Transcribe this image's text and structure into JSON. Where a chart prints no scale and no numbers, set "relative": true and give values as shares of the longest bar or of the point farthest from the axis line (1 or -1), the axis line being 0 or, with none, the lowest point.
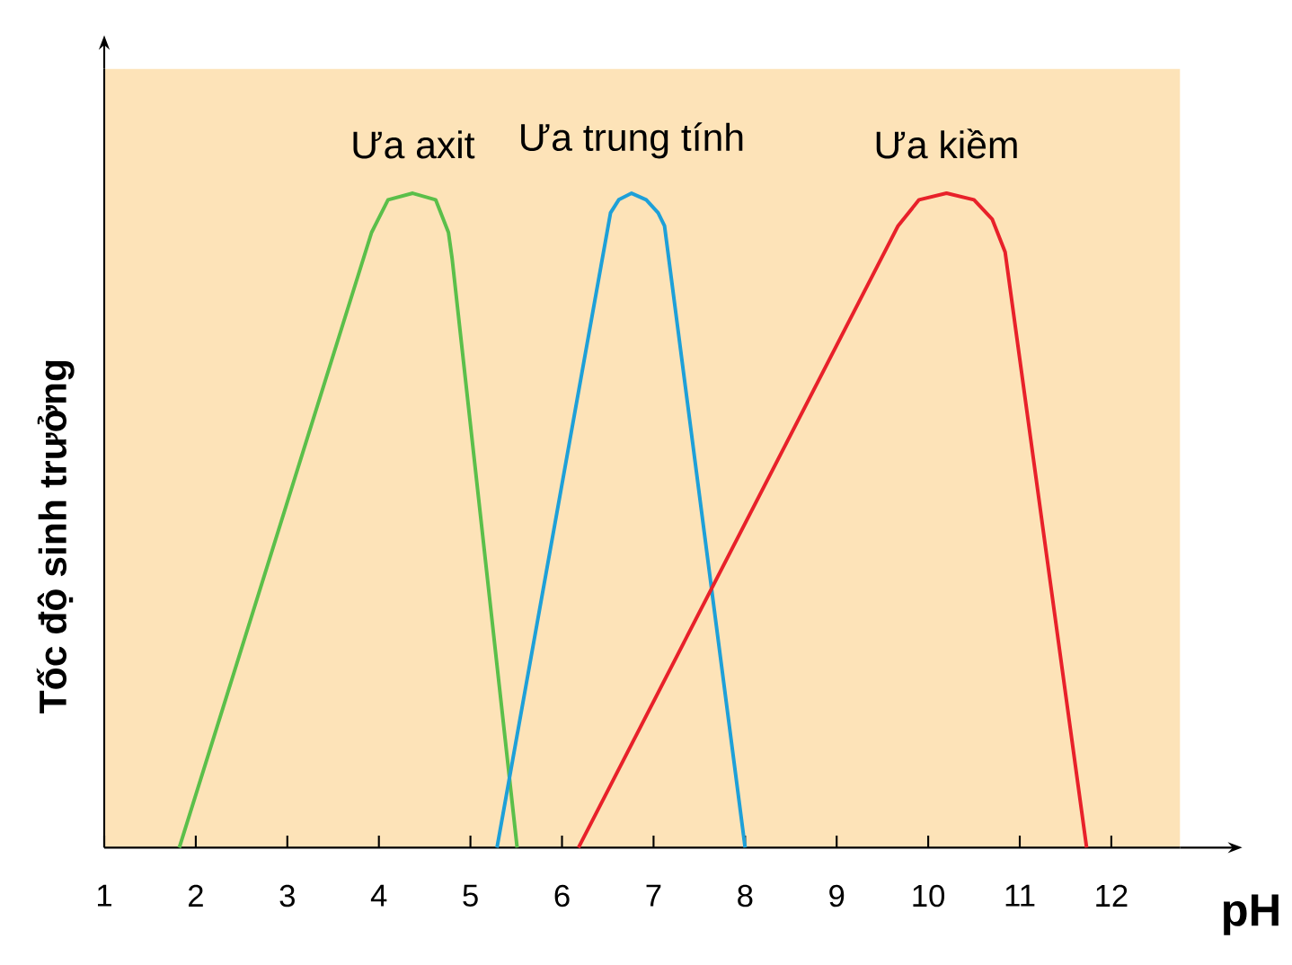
{
  "chart_data": {
    "type": "line",
    "relative": true,
    "xlabel": "pH",
    "ylabel": "Tốc độ sinh trưởng",
    "xlim": [
      1,
      12.75
    ],
    "xticks": [
      1,
      2,
      3,
      4,
      5,
      6,
      7,
      8,
      9,
      10,
      11,
      12
    ],
    "marker": "none",
    "line_style": "solid",
    "grid": false,
    "series": [
      {
        "name": "Ưa axit",
        "color": "#5bbf4a",
        "x": [
          1.82,
          3.92,
          4.1,
          4.37,
          4.62,
          4.76,
          4.8,
          5.51
        ],
        "values": [
          0,
          0.94,
          0.99,
          1,
          0.99,
          0.94,
          0.9,
          0
        ]
      },
      {
        "name": "Ưa trung tính",
        "color": "#1ea0d8",
        "x": [
          5.29,
          6.53,
          6.62,
          6.76,
          6.92,
          7.05,
          7.12,
          8.0
        ],
        "values": [
          0,
          0.97,
          0.99,
          1,
          0.99,
          0.97,
          0.95,
          0
        ]
      },
      {
        "name": "Ưa kiềm",
        "color": "#e8212a",
        "x": [
          6.18,
          9.67,
          9.9,
          10.2,
          10.5,
          10.7,
          10.84,
          11.73
        ],
        "values": [
          0,
          0.95,
          0.99,
          1,
          0.99,
          0.96,
          0.91,
          0
        ]
      }
    ]
  }
}
